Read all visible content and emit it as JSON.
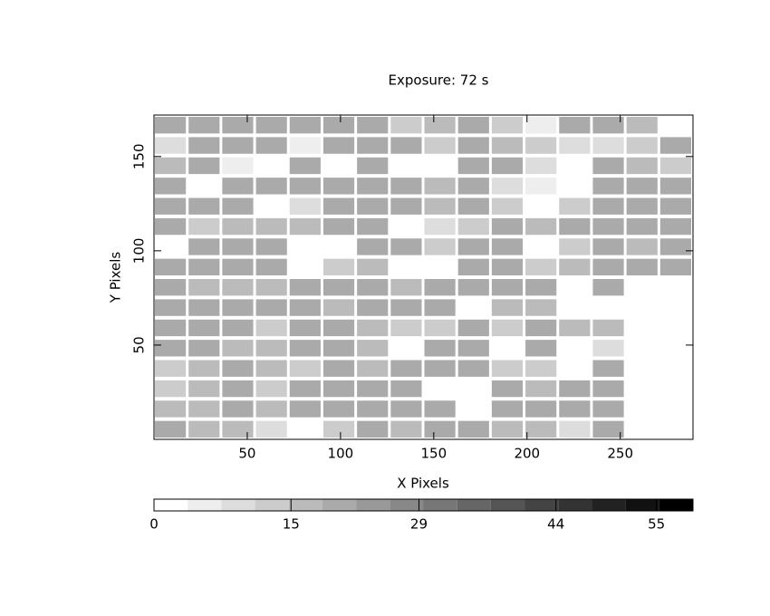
{
  "chart_data": {
    "type": "heatmap",
    "title": "Exposure: 72 s",
    "x_label": "X Pixels",
    "y_label": "Y Pixels",
    "xlim": [
      0,
      289
    ],
    "ylim": [
      0,
      172
    ],
    "xticks": [
      50,
      100,
      150,
      200,
      250
    ],
    "yticks": [
      50,
      100,
      150
    ],
    "z": [
      [
        22,
        22,
        22,
        22,
        22,
        22,
        22,
        12,
        18,
        22,
        14,
        4,
        22,
        22,
        18,
        null
      ],
      [
        8,
        22,
        22,
        22,
        4,
        22,
        22,
        22,
        14,
        22,
        18,
        14,
        10,
        10,
        14,
        22
      ],
      [
        18,
        20,
        6,
        null,
        20,
        null,
        20,
        null,
        null,
        22,
        20,
        8,
        null,
        22,
        16,
        12
      ],
      [
        22,
        null,
        22,
        22,
        22,
        22,
        22,
        22,
        16,
        22,
        8,
        4,
        null,
        22,
        20,
        20
      ],
      [
        22,
        22,
        22,
        null,
        8,
        22,
        22,
        22,
        16,
        22,
        14,
        null,
        14,
        22,
        20,
        20
      ],
      [
        22,
        14,
        18,
        16,
        18,
        20,
        22,
        null,
        10,
        12,
        20,
        16,
        20,
        20,
        20,
        22
      ],
      [
        null,
        22,
        22,
        22,
        null,
        null,
        22,
        22,
        14,
        22,
        22,
        null,
        14,
        20,
        18,
        22
      ],
      [
        22,
        22,
        22,
        22,
        null,
        12,
        16,
        null,
        null,
        22,
        22,
        12,
        16,
        20,
        20,
        20
      ],
      [
        20,
        18,
        18,
        18,
        22,
        22,
        22,
        18,
        22,
        22,
        22,
        22,
        null,
        20,
        null,
        null
      ],
      [
        22,
        22,
        22,
        22,
        22,
        16,
        22,
        22,
        22,
        null,
        16,
        18,
        null,
        null,
        null,
        null
      ],
      [
        20,
        20,
        20,
        14,
        22,
        22,
        18,
        12,
        14,
        22,
        12,
        20,
        18,
        18,
        null,
        null
      ],
      [
        22,
        22,
        18,
        18,
        22,
        22,
        18,
        null,
        22,
        22,
        null,
        20,
        null,
        8,
        null,
        null
      ],
      [
        14,
        18,
        22,
        18,
        14,
        22,
        18,
        22,
        22,
        22,
        14,
        14,
        null,
        22,
        null,
        null
      ],
      [
        12,
        16,
        22,
        12,
        20,
        22,
        20,
        22,
        null,
        null,
        22,
        18,
        22,
        22,
        null,
        null
      ],
      [
        18,
        16,
        20,
        16,
        20,
        22,
        22,
        22,
        22,
        null,
        22,
        20,
        22,
        22,
        null,
        null
      ],
      [
        20,
        18,
        18,
        10,
        null,
        14,
        22,
        16,
        20,
        22,
        18,
        16,
        10,
        20,
        null,
        null
      ]
    ],
    "colorbar": {
      "lim": [
        0,
        59
      ],
      "ticks": [
        0,
        15,
        29,
        44,
        55
      ],
      "levels": 16
    }
  }
}
